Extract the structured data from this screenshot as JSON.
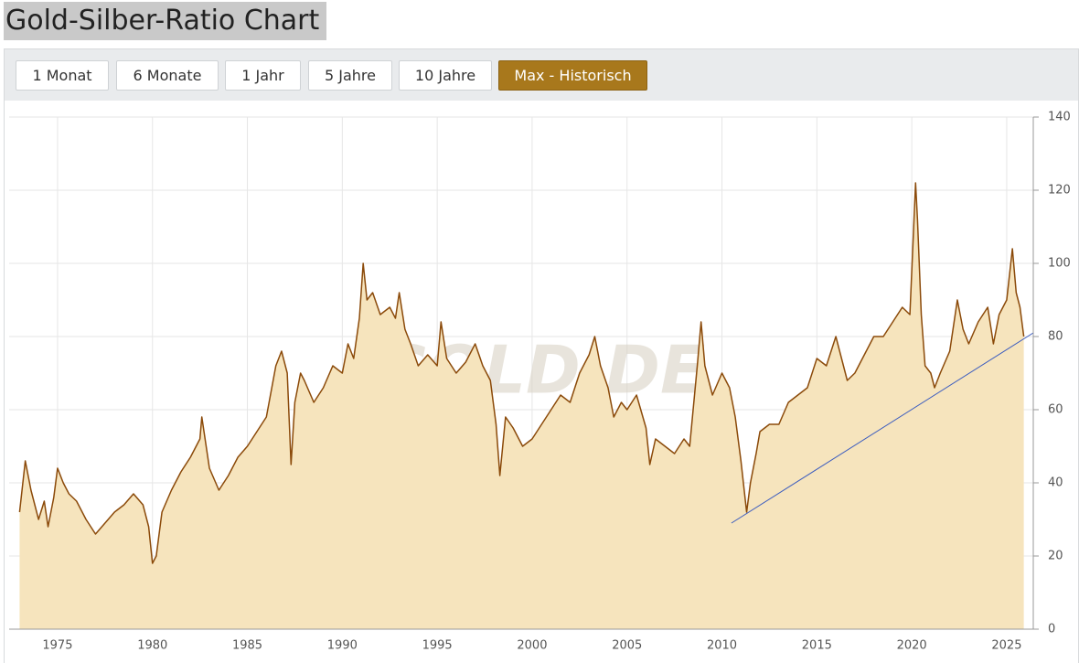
{
  "title": "Gold-Silber-Ratio Chart",
  "buttons": {
    "labels": [
      "1 Monat",
      "6 Monate",
      "1 Jahr",
      "5 Jahre",
      "10 Jahre",
      "Max - Historisch"
    ],
    "active": 5
  },
  "chart_data": {
    "type": "area",
    "watermark": "GOLD.DE",
    "line_color": "#8b4a0a",
    "fill_color": "#f6e4bd",
    "grid": true,
    "xlim": [
      1972.45,
      2026.4
    ],
    "ylim": [
      0,
      140
    ],
    "xticks": [
      1975,
      1980,
      1985,
      1990,
      1995,
      2000,
      2005,
      2010,
      2015,
      2020,
      2025
    ],
    "yticks": [
      0,
      20,
      40,
      60,
      80,
      100,
      120,
      140
    ],
    "x": [
      1973.0,
      1973.3,
      1973.6,
      1974.0,
      1974.3,
      1974.5,
      1974.8,
      1975.0,
      1975.3,
      1975.6,
      1976.0,
      1976.5,
      1977.0,
      1977.5,
      1978.0,
      1978.5,
      1979.0,
      1979.5,
      1979.8,
      1980.0,
      1980.2,
      1980.5,
      1981.0,
      1981.5,
      1982.0,
      1982.5,
      1982.6,
      1983.0,
      1983.5,
      1984.0,
      1984.5,
      1985.0,
      1985.5,
      1986.0,
      1986.5,
      1986.8,
      1987.1,
      1987.3,
      1987.5,
      1987.8,
      1988.0,
      1988.5,
      1989.0,
      1989.5,
      1990.0,
      1990.3,
      1990.6,
      1990.9,
      1991.1,
      1991.3,
      1991.6,
      1992.0,
      1992.5,
      1992.8,
      1993.0,
      1993.3,
      1993.6,
      1994.0,
      1994.5,
      1995.0,
      1995.2,
      1995.5,
      1996.0,
      1996.5,
      1997.0,
      1997.4,
      1997.8,
      1998.1,
      1998.3,
      1998.6,
      1999.0,
      1999.5,
      2000.0,
      2000.5,
      2001.0,
      2001.5,
      2002.0,
      2002.5,
      2003.0,
      2003.3,
      2003.6,
      2004.0,
      2004.3,
      2004.7,
      2005.0,
      2005.5,
      2006.0,
      2006.2,
      2006.5,
      2007.0,
      2007.5,
      2008.0,
      2008.3,
      2008.7,
      2008.9,
      2009.1,
      2009.5,
      2010.0,
      2010.4,
      2010.7,
      2011.0,
      2011.3,
      2011.5,
      2011.8,
      2012.0,
      2012.5,
      2013.0,
      2013.5,
      2014.0,
      2014.5,
      2015.0,
      2015.5,
      2016.0,
      2016.3,
      2016.6,
      2017.0,
      2017.5,
      2018.0,
      2018.5,
      2019.0,
      2019.5,
      2019.9,
      2020.2,
      2020.3,
      2020.5,
      2020.7,
      2021.0,
      2021.2,
      2021.5,
      2022.0,
      2022.4,
      2022.7,
      2023.0,
      2023.5,
      2024.0,
      2024.3,
      2024.6,
      2025.0,
      2025.3,
      2025.5,
      2025.7,
      2025.9
    ],
    "values": [
      32,
      46,
      38,
      30,
      35,
      28,
      36,
      44,
      40,
      37,
      35,
      30,
      26,
      29,
      32,
      34,
      37,
      34,
      28,
      18,
      20,
      32,
      38,
      43,
      47,
      52,
      58,
      44,
      38,
      42,
      47,
      50,
      54,
      58,
      72,
      76,
      70,
      45,
      62,
      70,
      68,
      62,
      66,
      72,
      70,
      78,
      74,
      85,
      100,
      90,
      92,
      86,
      88,
      85,
      92,
      82,
      78,
      72,
      75,
      72,
      84,
      74,
      70,
      73,
      78,
      72,
      68,
      56,
      42,
      58,
      55,
      50,
      52,
      56,
      60,
      64,
      62,
      70,
      75,
      80,
      72,
      66,
      58,
      62,
      60,
      64,
      55,
      45,
      52,
      50,
      48,
      52,
      50,
      72,
      84,
      72,
      64,
      70,
      66,
      58,
      46,
      32,
      40,
      48,
      54,
      56,
      56,
      62,
      64,
      66,
      74,
      72,
      80,
      74,
      68,
      70,
      75,
      80,
      80,
      84,
      88,
      86,
      122,
      112,
      86,
      72,
      70,
      66,
      70,
      76,
      90,
      82,
      78,
      84,
      88,
      78,
      86,
      90,
      104,
      92,
      88,
      80
    ],
    "trend_line": {
      "color": "#3a5bbf",
      "x": [
        2010.5,
        2026.4
      ],
      "values": [
        29,
        81
      ]
    }
  }
}
